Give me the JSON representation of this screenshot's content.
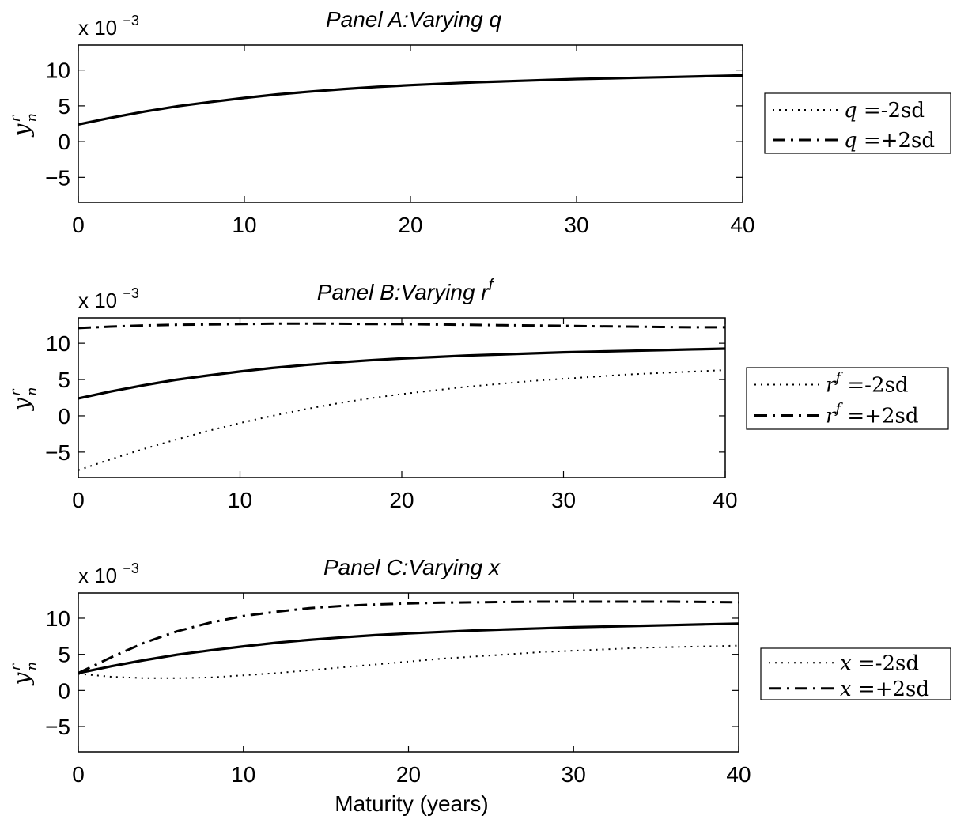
{
  "chart_data": [
    {
      "type": "line",
      "title": "Panel A:Varying q",
      "scale_label": "x 10",
      "scale_exp": "−3",
      "ylabel": {
        "main": "y",
        "sup": "r",
        "sub": "n"
      },
      "xlabel": "",
      "xlim": [
        0,
        40
      ],
      "ylim": [
        -8.5,
        13.5
      ],
      "xticks": [
        0,
        10,
        20,
        30,
        40
      ],
      "yticks": [
        -5,
        0,
        5,
        10
      ],
      "ytick_labels": [
        "−5",
        "0",
        "5",
        "10"
      ],
      "series": [
        {
          "style": "solid",
          "x": [
            0,
            2,
            4,
            6,
            8,
            10,
            12,
            14,
            16,
            18,
            20,
            22,
            24,
            26,
            28,
            30,
            32,
            34,
            36,
            38,
            40
          ],
          "y": [
            2.4,
            3.35,
            4.2,
            4.95,
            5.55,
            6.1,
            6.6,
            7.0,
            7.35,
            7.65,
            7.9,
            8.1,
            8.3,
            8.45,
            8.6,
            8.75,
            8.85,
            8.95,
            9.05,
            9.15,
            9.25
          ]
        }
      ],
      "legend": {
        "placement": "right",
        "entries": [
          {
            "style": "dotted",
            "var": "q",
            "sup": "",
            "text": "=-2sd"
          },
          {
            "style": "dashdot",
            "var": "q",
            "sup": "",
            "text": "=+2sd"
          }
        ]
      }
    },
    {
      "type": "line",
      "title": "Panel B:Varying r",
      "title_sup": "f",
      "scale_label": "x 10",
      "scale_exp": "−3",
      "ylabel": {
        "main": "y",
        "sup": "r",
        "sub": "n"
      },
      "xlabel": "",
      "xlim": [
        0,
        40
      ],
      "ylim": [
        -8.5,
        13.5
      ],
      "xticks": [
        0,
        10,
        20,
        30,
        40
      ],
      "yticks": [
        -5,
        0,
        5,
        10
      ],
      "ytick_labels": [
        "−5",
        "0",
        "5",
        "10"
      ],
      "series": [
        {
          "style": "solid",
          "x": [
            0,
            2,
            4,
            6,
            8,
            10,
            12,
            14,
            16,
            18,
            20,
            22,
            24,
            26,
            28,
            30,
            32,
            34,
            36,
            38,
            40
          ],
          "y": [
            2.4,
            3.35,
            4.2,
            4.95,
            5.55,
            6.1,
            6.6,
            7.0,
            7.35,
            7.65,
            7.9,
            8.1,
            8.3,
            8.45,
            8.6,
            8.75,
            8.85,
            8.95,
            9.05,
            9.15,
            9.25
          ]
        },
        {
          "style": "dotted",
          "x": [
            0,
            2,
            4,
            6,
            8,
            10,
            12,
            14,
            16,
            18,
            20,
            22,
            24,
            26,
            28,
            30,
            32,
            34,
            36,
            38,
            40
          ],
          "y": [
            -7.5,
            -6.0,
            -4.6,
            -3.3,
            -2.1,
            -1.0,
            0.0,
            0.9,
            1.7,
            2.4,
            3.0,
            3.5,
            4.0,
            4.4,
            4.8,
            5.1,
            5.4,
            5.7,
            5.9,
            6.1,
            6.3
          ]
        },
        {
          "style": "dashdot",
          "x": [
            0,
            2,
            4,
            6,
            8,
            10,
            12,
            14,
            16,
            18,
            20,
            22,
            24,
            26,
            28,
            30,
            32,
            34,
            36,
            38,
            40
          ],
          "y": [
            12.1,
            12.3,
            12.45,
            12.55,
            12.6,
            12.65,
            12.7,
            12.7,
            12.7,
            12.65,
            12.65,
            12.6,
            12.55,
            12.5,
            12.45,
            12.4,
            12.35,
            12.3,
            12.25,
            12.2,
            12.2
          ]
        }
      ],
      "legend": {
        "placement": "right",
        "entries": [
          {
            "style": "dotted",
            "var": "r",
            "sup": "f",
            "text": "=-2sd"
          },
          {
            "style": "dashdot",
            "var": "r",
            "sup": "f",
            "text": "=+2sd"
          }
        ]
      }
    },
    {
      "type": "line",
      "title": "Panel C:Varying x",
      "scale_label": "x 10",
      "scale_exp": "−3",
      "ylabel": {
        "main": "y",
        "sup": "r",
        "sub": "n"
      },
      "xlabel": "Maturity (years)",
      "xlim": [
        0,
        40
      ],
      "ylim": [
        -8.5,
        13.5
      ],
      "xticks": [
        0,
        10,
        20,
        30,
        40
      ],
      "yticks": [
        -5,
        0,
        5,
        10
      ],
      "ytick_labels": [
        "−5",
        "0",
        "5",
        "10"
      ],
      "series": [
        {
          "style": "solid",
          "x": [
            0,
            2,
            4,
            6,
            8,
            10,
            12,
            14,
            16,
            18,
            20,
            22,
            24,
            26,
            28,
            30,
            32,
            34,
            36,
            38,
            40
          ],
          "y": [
            2.4,
            3.35,
            4.2,
            4.95,
            5.55,
            6.1,
            6.6,
            7.0,
            7.35,
            7.65,
            7.9,
            8.1,
            8.3,
            8.45,
            8.6,
            8.75,
            8.85,
            8.95,
            9.05,
            9.15,
            9.25
          ]
        },
        {
          "style": "dotted",
          "x": [
            0,
            2,
            4,
            6,
            8,
            10,
            12,
            14,
            16,
            18,
            20,
            22,
            24,
            26,
            28,
            30,
            32,
            34,
            36,
            38,
            40
          ],
          "y": [
            2.3,
            1.9,
            1.7,
            1.7,
            1.8,
            2.1,
            2.4,
            2.8,
            3.2,
            3.6,
            4.0,
            4.4,
            4.7,
            5.0,
            5.3,
            5.5,
            5.7,
            5.9,
            6.0,
            6.1,
            6.2
          ]
        },
        {
          "style": "dashdot",
          "x": [
            0,
            2,
            4,
            6,
            8,
            10,
            12,
            14,
            16,
            18,
            20,
            22,
            24,
            26,
            28,
            30,
            32,
            34,
            36,
            38,
            40
          ],
          "y": [
            2.4,
            4.6,
            6.6,
            8.2,
            9.4,
            10.3,
            10.9,
            11.4,
            11.7,
            11.9,
            12.05,
            12.15,
            12.2,
            12.25,
            12.3,
            12.3,
            12.3,
            12.3,
            12.3,
            12.25,
            12.2
          ]
        }
      ],
      "legend": {
        "placement": "right",
        "entries": [
          {
            "style": "dotted",
            "var": "x",
            "sup": "",
            "text": "=-2sd"
          },
          {
            "style": "dashdot",
            "var": "x",
            "sup": "",
            "text": "=+2sd"
          }
        ]
      }
    }
  ]
}
